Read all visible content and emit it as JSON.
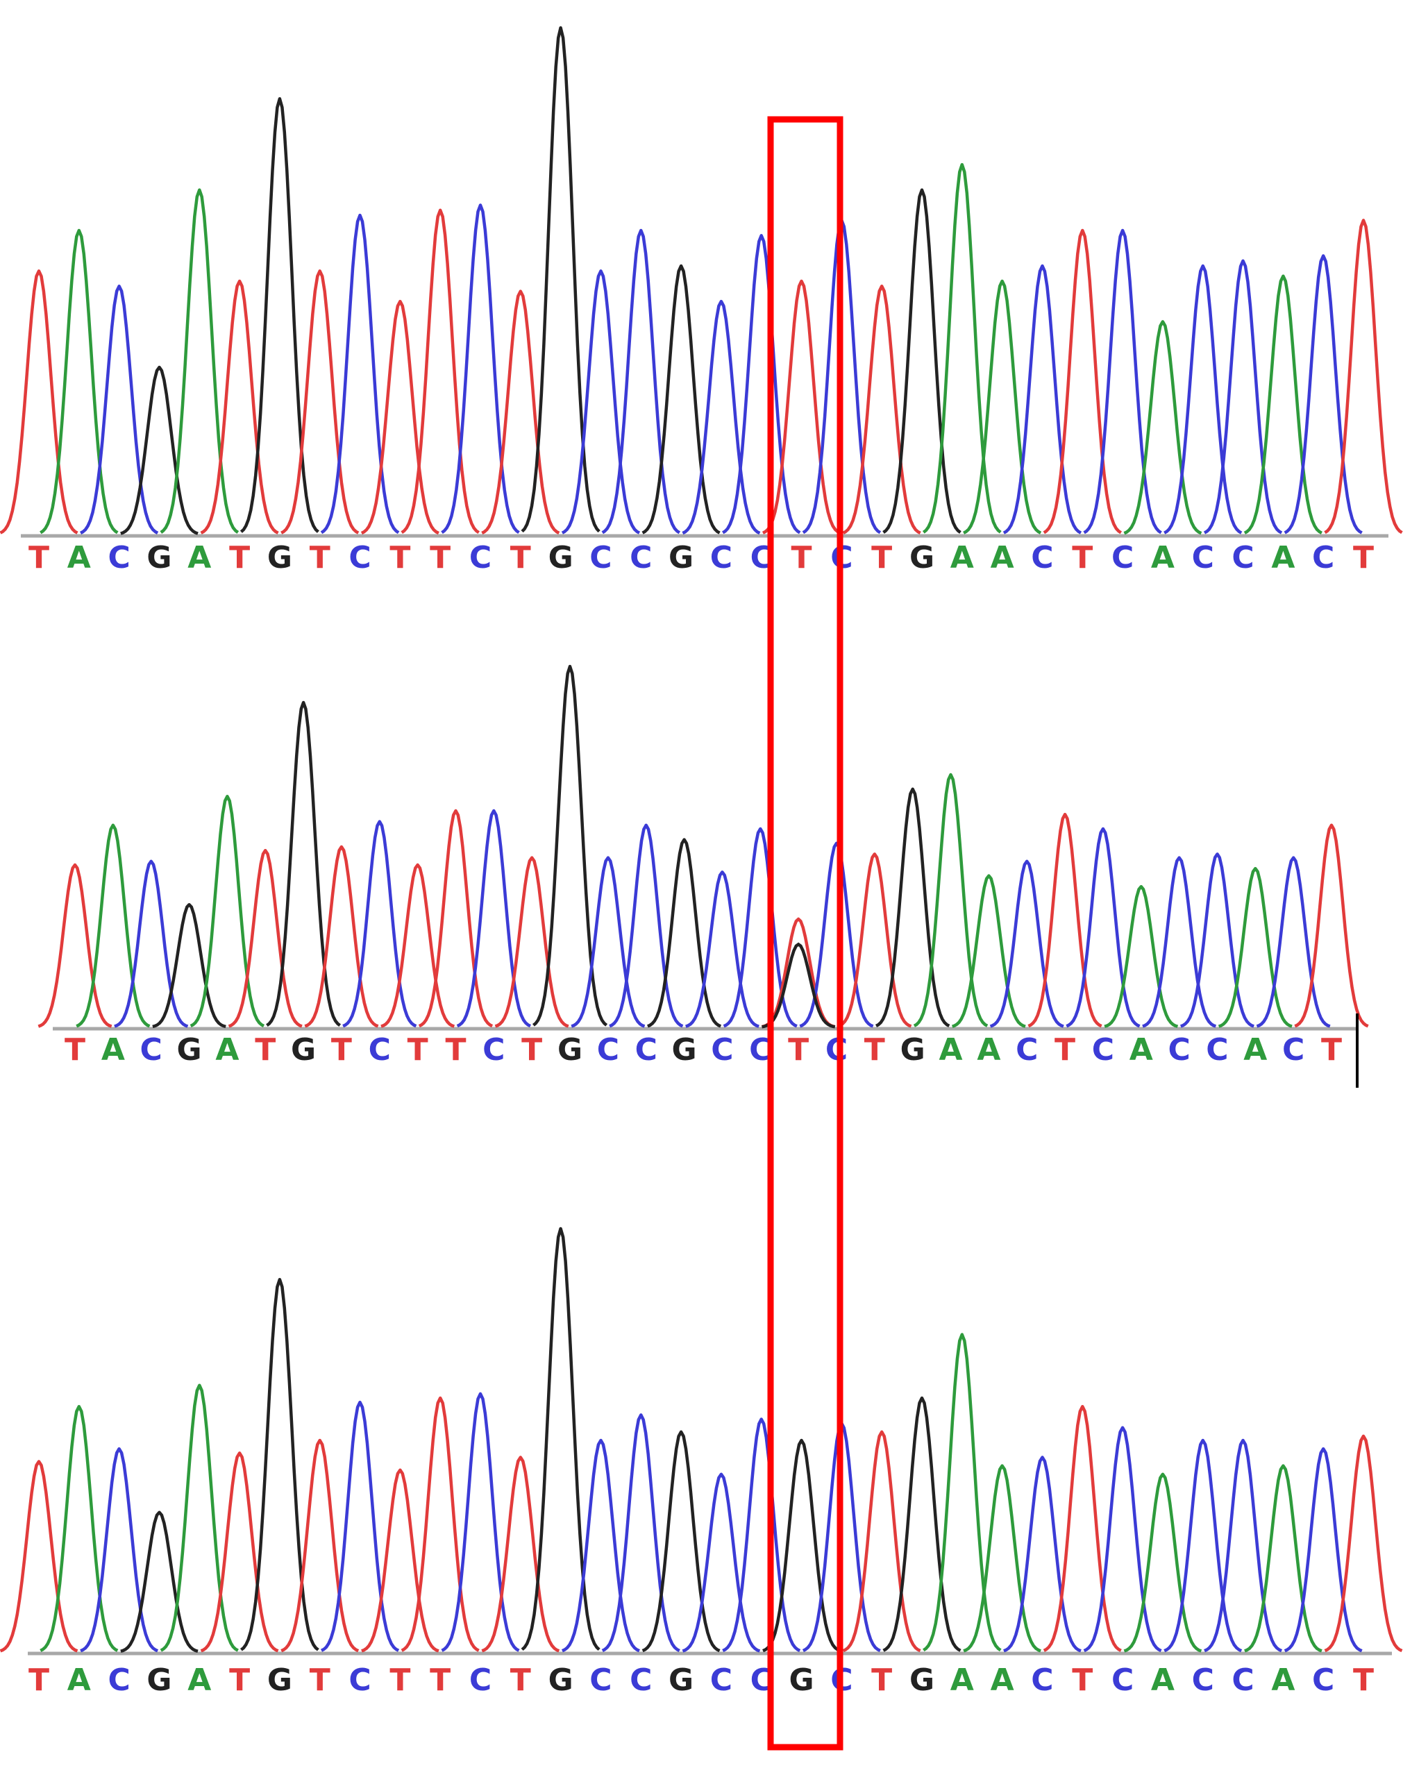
{
  "colors": {
    "A": "#2e9b3c",
    "C": "#3b3bd6",
    "G": "#222222",
    "T": "#e23b3b",
    "baseline": "#a8a8a8",
    "highlight": "#ff0000"
  },
  "chart_data": [
    {
      "type": "chromatogram",
      "sequence": "TACGATGTCTTCTGCCGCCTCTGAACTCACCACT",
      "peaks": [
        {
          "base": "T",
          "height": 0.52
        },
        {
          "base": "A",
          "height": 0.6
        },
        {
          "base": "C",
          "height": 0.49
        },
        {
          "base": "G",
          "height": 0.33
        },
        {
          "base": "A",
          "height": 0.68
        },
        {
          "base": "T",
          "height": 0.5
        },
        {
          "base": "G",
          "height": 0.86
        },
        {
          "base": "T",
          "height": 0.52
        },
        {
          "base": "C",
          "height": 0.63
        },
        {
          "base": "T",
          "height": 0.46
        },
        {
          "base": "T",
          "height": 0.64
        },
        {
          "base": "C",
          "height": 0.65
        },
        {
          "base": "T",
          "height": 0.48
        },
        {
          "base": "G",
          "height": 1.0
        },
        {
          "base": "C",
          "height": 0.52
        },
        {
          "base": "C",
          "height": 0.6
        },
        {
          "base": "G",
          "height": 0.53
        },
        {
          "base": "C",
          "height": 0.46
        },
        {
          "base": "C",
          "height": 0.59
        },
        {
          "base": "T",
          "height": 0.5
        },
        {
          "base": "C",
          "height": 0.62
        },
        {
          "base": "T",
          "height": 0.49
        },
        {
          "base": "G",
          "height": 0.68
        },
        {
          "base": "A",
          "height": 0.73
        },
        {
          "base": "A",
          "height": 0.5
        },
        {
          "base": "C",
          "height": 0.53
        },
        {
          "base": "T",
          "height": 0.6
        },
        {
          "base": "C",
          "height": 0.6
        },
        {
          "base": "A",
          "height": 0.42
        },
        {
          "base": "C",
          "height": 0.53
        },
        {
          "base": "C",
          "height": 0.54
        },
        {
          "base": "A",
          "height": 0.51
        },
        {
          "base": "C",
          "height": 0.55
        },
        {
          "base": "T",
          "height": 0.62
        }
      ],
      "secondary_peaks": []
    },
    {
      "type": "chromatogram",
      "sequence": "TACGATGTCTTCTGCCGCCTCTGAACTCACCACT",
      "peaks": [
        {
          "base": "T",
          "height": 0.45
        },
        {
          "base": "A",
          "height": 0.56
        },
        {
          "base": "C",
          "height": 0.46
        },
        {
          "base": "G",
          "height": 0.34
        },
        {
          "base": "A",
          "height": 0.64
        },
        {
          "base": "T",
          "height": 0.49
        },
        {
          "base": "G",
          "height": 0.9
        },
        {
          "base": "T",
          "height": 0.5
        },
        {
          "base": "C",
          "height": 0.57
        },
        {
          "base": "T",
          "height": 0.45
        },
        {
          "base": "T",
          "height": 0.6
        },
        {
          "base": "C",
          "height": 0.6
        },
        {
          "base": "T",
          "height": 0.47
        },
        {
          "base": "G",
          "height": 1.0
        },
        {
          "base": "C",
          "height": 0.47
        },
        {
          "base": "C",
          "height": 0.56
        },
        {
          "base": "G",
          "height": 0.52
        },
        {
          "base": "C",
          "height": 0.43
        },
        {
          "base": "C",
          "height": 0.55
        },
        {
          "base": "T",
          "height": 0.3
        },
        {
          "base": "C",
          "height": 0.51
        },
        {
          "base": "T",
          "height": 0.48
        },
        {
          "base": "G",
          "height": 0.66
        },
        {
          "base": "A",
          "height": 0.7
        },
        {
          "base": "A",
          "height": 0.42
        },
        {
          "base": "C",
          "height": 0.46
        },
        {
          "base": "T",
          "height": 0.59
        },
        {
          "base": "C",
          "height": 0.55
        },
        {
          "base": "A",
          "height": 0.39
        },
        {
          "base": "C",
          "height": 0.47
        },
        {
          "base": "C",
          "height": 0.48
        },
        {
          "base": "A",
          "height": 0.44
        },
        {
          "base": "C",
          "height": 0.47
        },
        {
          "base": "T",
          "height": 0.56
        }
      ],
      "secondary_peaks": [
        {
          "index": 19,
          "base": "G",
          "height": 0.23
        }
      ]
    },
    {
      "type": "chromatogram",
      "sequence": "TACGATGTCTTCTGCCGCCGCTGAACTCACCACT",
      "peaks": [
        {
          "base": "T",
          "height": 0.45
        },
        {
          "base": "A",
          "height": 0.58
        },
        {
          "base": "C",
          "height": 0.48
        },
        {
          "base": "G",
          "height": 0.33
        },
        {
          "base": "A",
          "height": 0.63
        },
        {
          "base": "T",
          "height": 0.47
        },
        {
          "base": "G",
          "height": 0.88
        },
        {
          "base": "T",
          "height": 0.5
        },
        {
          "base": "C",
          "height": 0.59
        },
        {
          "base": "T",
          "height": 0.43
        },
        {
          "base": "T",
          "height": 0.6
        },
        {
          "base": "C",
          "height": 0.61
        },
        {
          "base": "T",
          "height": 0.46
        },
        {
          "base": "G",
          "height": 1.0
        },
        {
          "base": "C",
          "height": 0.5
        },
        {
          "base": "C",
          "height": 0.56
        },
        {
          "base": "G",
          "height": 0.52
        },
        {
          "base": "C",
          "height": 0.42
        },
        {
          "base": "C",
          "height": 0.55
        },
        {
          "base": "G",
          "height": 0.5
        },
        {
          "base": "C",
          "height": 0.54
        },
        {
          "base": "T",
          "height": 0.52
        },
        {
          "base": "G",
          "height": 0.6
        },
        {
          "base": "A",
          "height": 0.75
        },
        {
          "base": "A",
          "height": 0.44
        },
        {
          "base": "C",
          "height": 0.46
        },
        {
          "base": "T",
          "height": 0.58
        },
        {
          "base": "C",
          "height": 0.53
        },
        {
          "base": "A",
          "height": 0.42
        },
        {
          "base": "C",
          "height": 0.5
        },
        {
          "base": "C",
          "height": 0.5
        },
        {
          "base": "A",
          "height": 0.44
        },
        {
          "base": "C",
          "height": 0.48
        },
        {
          "base": "T",
          "height": 0.51
        }
      ],
      "secondary_peaks": []
    }
  ]
}
